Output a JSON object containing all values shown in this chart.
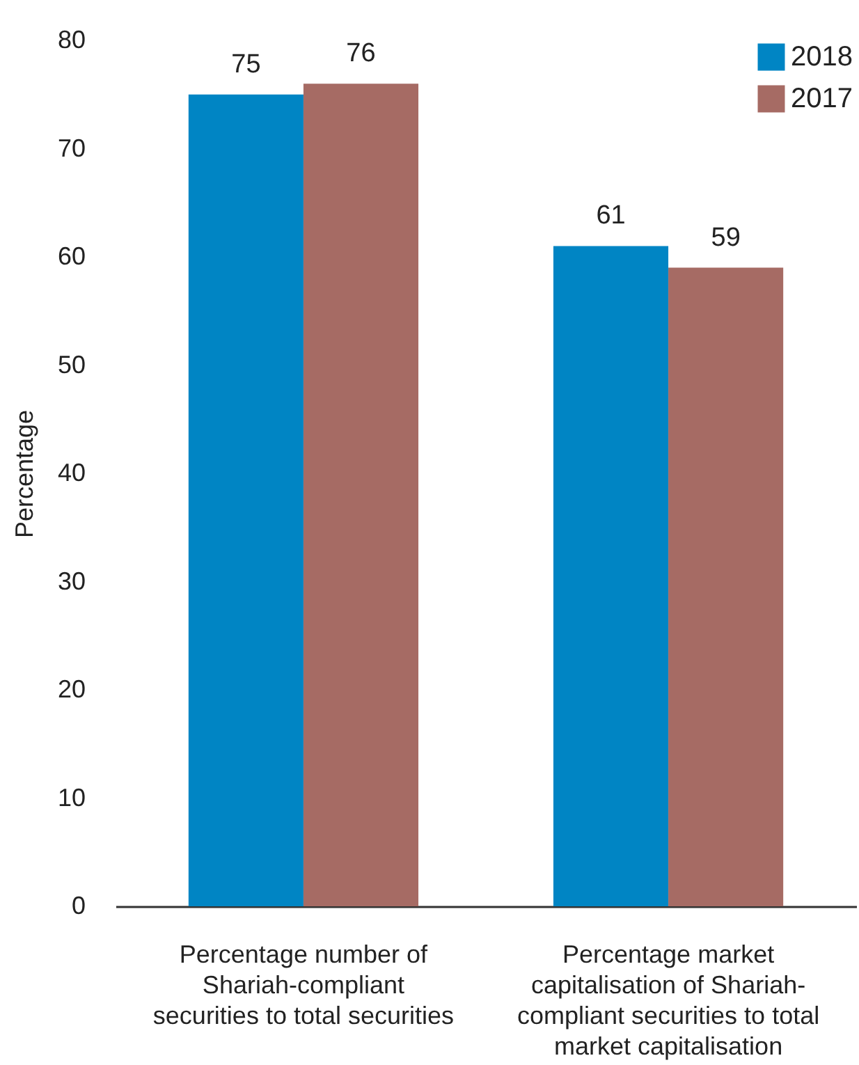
{
  "chart_data": {
    "type": "bar",
    "ylabel": "Percentage",
    "categories": [
      "Percentage number of Shariah-compliant securities to total securities",
      "Percentage market capitalisation of Shariah-compliant securities to total market capitalisation"
    ],
    "series": [
      {
        "name": "2018",
        "color": "#0085c4",
        "values": [
          75,
          61
        ]
      },
      {
        "name": "2017",
        "color": "#a66b64",
        "values": [
          76,
          59
        ]
      }
    ],
    "ylim": [
      0,
      80
    ],
    "yticks": [
      0,
      10,
      20,
      30,
      40,
      50,
      60,
      70,
      80
    ],
    "grid": false,
    "legend": "top right",
    "data_labels": true
  }
}
